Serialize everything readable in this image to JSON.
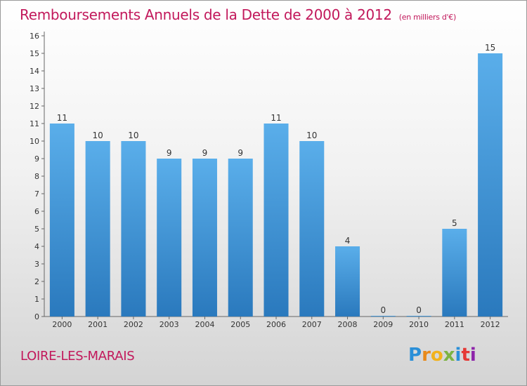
{
  "title": "Remboursements Annuels de la Dette de 2000 à 2012",
  "subtitle": "(en milliers d'€)",
  "commune": "LOIRE-LES-MARAIS",
  "logo": {
    "letters": [
      "P",
      "r",
      "o",
      "x",
      "i",
      "t",
      "i"
    ]
  },
  "colors": {
    "bar_top": "#5aaeea",
    "bar_bottom": "#2a79bd",
    "title": "#c2185b"
  },
  "chart_data": {
    "type": "bar",
    "categories": [
      "2000",
      "2001",
      "2002",
      "2003",
      "2004",
      "2005",
      "2006",
      "2007",
      "2008",
      "2009",
      "2010",
      "2011",
      "2012"
    ],
    "values": [
      11,
      10,
      10,
      9,
      9,
      9,
      11,
      10,
      4,
      0,
      0,
      5,
      15
    ],
    "ylim": [
      0,
      16
    ],
    "yticks": [
      0,
      1,
      2,
      3,
      4,
      5,
      6,
      7,
      8,
      9,
      10,
      11,
      12,
      13,
      14,
      15,
      16
    ],
    "grid": false,
    "data_labels": true
  }
}
